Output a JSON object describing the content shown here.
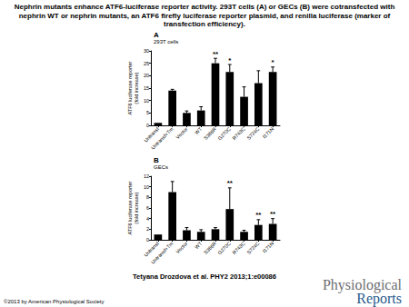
{
  "caption": "Nephrin mutants enhance ATF6-luciferase reporter activity. 293T cells (A) or GECs (B) were cotransfected with nephrin WT or nephrin mutants, an ATF6 firefly luciferase reporter plasmid, and renilla luciferase (marker of transfection efficiency).",
  "citation": "Tetyana Drozdova et al. PHY2 2013;1:e00086",
  "copyright": "©2013 by American Physiological Society",
  "logo": [
    "Physiological",
    "Reports"
  ],
  "chart_data": [
    {
      "type": "bar",
      "panel": "A",
      "title": "293T cells",
      "y_label": "ATF6 luciferase reporter\n(fold increase)",
      "categories": [
        "Untransf",
        "Untransf+Tm",
        "Vector",
        "WT",
        "S366R",
        "G270C",
        "R743C",
        "S724C",
        "I171N"
      ],
      "values": [
        1,
        14,
        5,
        6,
        25,
        21.5,
        11.5,
        17,
        21.5
      ],
      "errors": [
        null,
        0.5,
        0.8,
        1.5,
        2,
        3,
        4,
        5,
        2
      ],
      "annotations": [
        {
          "category": "S366R",
          "text": "**"
        },
        {
          "category": "G270C",
          "text": "*"
        },
        {
          "category": "I171N",
          "text": "*"
        }
      ],
      "color": "#000000",
      "ylim": [
        0,
        30
      ],
      "yticks": [
        0,
        5,
        10,
        15,
        20,
        25,
        30
      ],
      "grid": false
    },
    {
      "type": "bar",
      "panel": "B",
      "title": "GECs",
      "y_label": "ATF6 luciferase reporter\n(fold increase)",
      "categories": [
        "Untransf",
        "Untransf+Tm",
        "Vector",
        "WT",
        "S366R",
        "G270C",
        "R743C",
        "S724C",
        "I171N"
      ],
      "values": [
        1,
        9,
        1.8,
        1.5,
        2,
        5.8,
        1.5,
        2.8,
        3
      ],
      "errors": [
        null,
        2,
        0.5,
        0.4,
        0.3,
        4,
        0.3,
        1,
        1
      ],
      "annotations": [
        {
          "category": "G270C",
          "text": "**"
        },
        {
          "category": "S724C",
          "text": "**"
        },
        {
          "category": "I171N",
          "text": "**"
        }
      ],
      "color": "#000000",
      "ylim": [
        0,
        12
      ],
      "yticks": [
        0,
        2,
        4,
        6,
        8,
        10,
        12
      ],
      "grid": false
    }
  ]
}
